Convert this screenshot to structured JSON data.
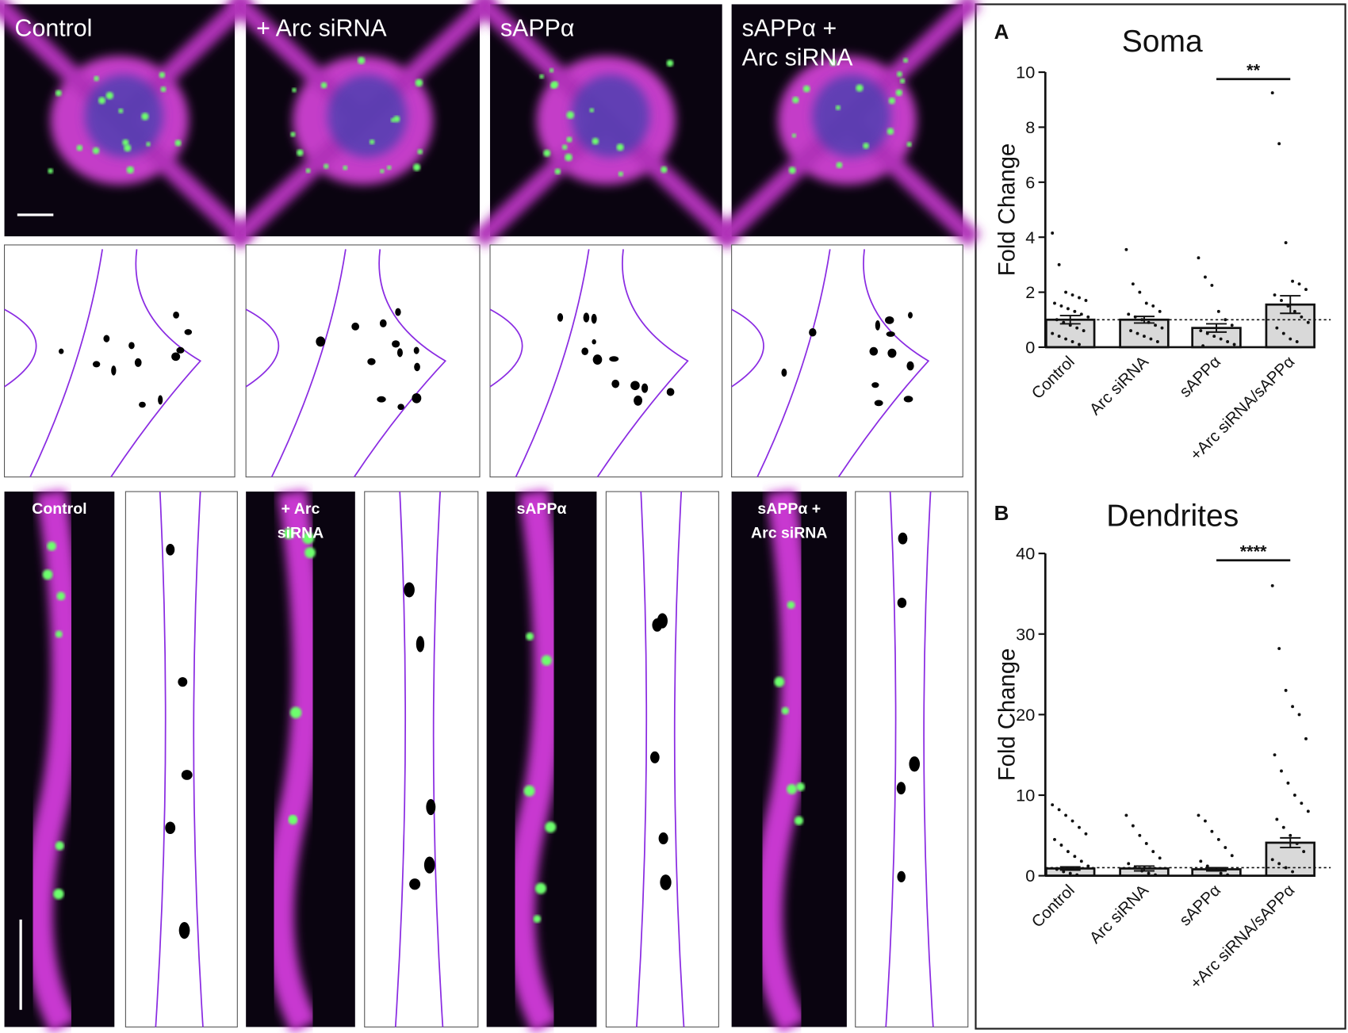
{
  "panels": {
    "top": [
      {
        "label": [
          "Control"
        ]
      },
      {
        "label": [
          "+ Arc siRNA"
        ]
      },
      {
        "label": [
          "sAPPα"
        ]
      },
      {
        "label": [
          "sAPPα +",
          "Arc siRNA"
        ]
      }
    ],
    "bottom": [
      {
        "label": [
          "Control"
        ]
      },
      {
        "label": [
          "+ Arc",
          "siRNA"
        ]
      },
      {
        "label": [
          "sAPPα"
        ]
      },
      {
        "label": [
          "sAPPα +",
          "Arc siRNA"
        ]
      }
    ]
  },
  "chart_data": [
    {
      "type": "bar",
      "panel_label": "A",
      "title": "Soma",
      "ylabel": "Fold Change",
      "categories": [
        "Control",
        "Arc siRNA",
        "sAPPα",
        "+Arc siRNA/sAPPα"
      ],
      "values": [
        1.0,
        1.0,
        0.7,
        1.55
      ],
      "errors": [
        0.15,
        0.12,
        0.15,
        0.32
      ],
      "points": [
        [
          4.15,
          3.0,
          2.0,
          1.9,
          1.8,
          1.7,
          1.6,
          1.5,
          1.4,
          1.3,
          1.2,
          1.1,
          1.0,
          0.9,
          0.8,
          0.7,
          0.6,
          0.5,
          0.4,
          0.3,
          0.2,
          0.1
        ],
        [
          3.55,
          2.3,
          2.0,
          1.6,
          1.5,
          1.3,
          1.2,
          1.1,
          1.0,
          0.9,
          0.8,
          0.7,
          0.6,
          0.5,
          0.4,
          0.3,
          0.2
        ],
        [
          3.25,
          2.55,
          2.25,
          1.3,
          1.0,
          0.8,
          0.6,
          0.5,
          0.4,
          0.3,
          0.2,
          0.1,
          0.05
        ],
        [
          9.25,
          7.4,
          3.8,
          2.4,
          2.3,
          2.1,
          1.9,
          1.7,
          1.5,
          1.3,
          1.1,
          0.9,
          0.7,
          0.5,
          0.3,
          0.2
        ]
      ],
      "color": "#d9d9d9",
      "reference_line": 1,
      "significance": {
        "label": "**",
        "between": [
          2,
          3
        ]
      },
      "ylim": [
        0,
        10
      ],
      "yticks": [
        0,
        2,
        4,
        6,
        8,
        10
      ]
    },
    {
      "type": "bar",
      "panel_label": "B",
      "title": "Dendrites",
      "ylabel": "Fold Change",
      "categories": [
        "Control",
        "Arc siRNA",
        "sAPPα",
        "+Arc siRNA/sAPPα"
      ],
      "values": [
        0.9,
        0.9,
        0.8,
        4.1
      ],
      "errors": [
        0.2,
        0.3,
        0.2,
        0.6
      ],
      "points": [
        [
          8.8,
          8.2,
          7.5,
          6.8,
          6.0,
          5.2,
          4.5,
          3.8,
          3.0,
          2.4,
          1.8,
          1.2,
          0.8,
          0.5,
          0.3,
          0.1
        ],
        [
          7.5,
          6.2,
          5.0,
          4.0,
          3.0,
          2.2,
          1.5,
          1.0,
          0.6,
          0.3,
          0.1
        ],
        [
          7.5,
          6.8,
          5.5,
          4.5,
          3.5,
          2.5,
          1.8,
          1.2,
          0.7,
          0.3,
          0.1
        ],
        [
          36,
          28.2,
          23,
          21,
          20,
          17,
          15,
          13,
          11.5,
          10,
          9,
          8,
          7,
          6,
          5,
          4,
          3,
          2,
          1.5,
          1,
          0.5
        ]
      ],
      "color": "#d9d9d9",
      "reference_line": 1,
      "significance": {
        "label": "****",
        "between": [
          2,
          3
        ]
      },
      "ylim": [
        0,
        40
      ],
      "yticks": [
        0,
        10,
        20,
        30,
        40
      ]
    }
  ]
}
